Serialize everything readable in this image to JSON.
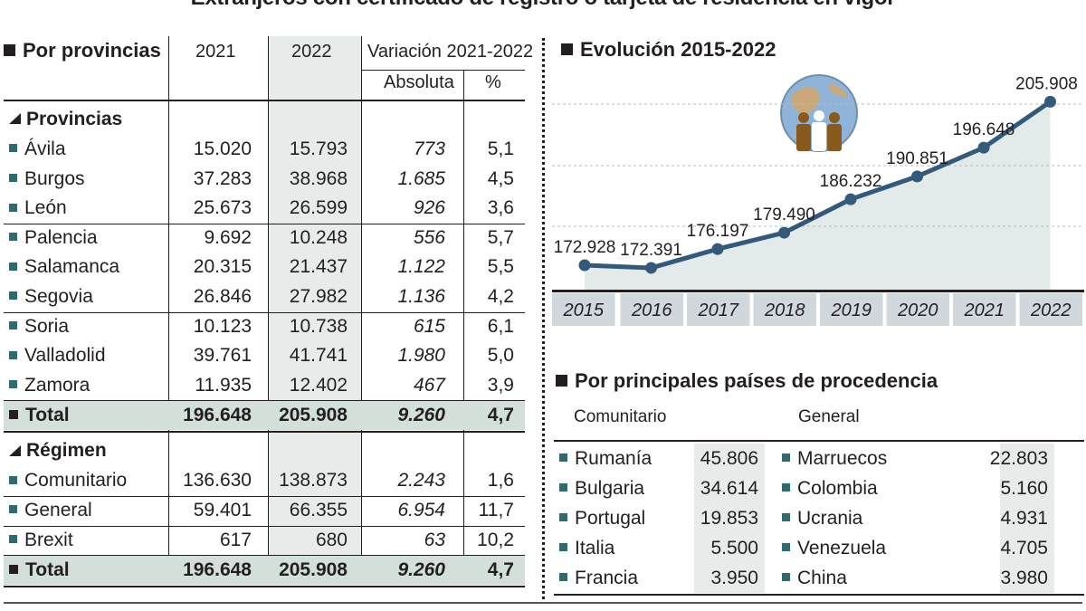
{
  "title": "Extranjeros con certificado de registro o tarjeta de residencia en vigor",
  "table": {
    "heading": "Por provincias",
    "col_2021": "2021",
    "col_2022": "2022",
    "col_variation": "Variación 2021-2022",
    "col_absolute": "Absoluta",
    "col_percent": "%",
    "sections": [
      {
        "label": "Provincias",
        "rows": [
          {
            "name": "Ávila",
            "y2021": "15.020",
            "y2022": "15.793",
            "abs": "773",
            "pct": "5,1"
          },
          {
            "name": "Burgos",
            "y2021": "37.283",
            "y2022": "38.968",
            "abs": "1.685",
            "pct": "4,5"
          },
          {
            "name": "León",
            "y2021": "25.673",
            "y2022": "26.599",
            "abs": "926",
            "pct": "3,6"
          },
          {
            "name": "Palencia",
            "y2021": "9.692",
            "y2022": "10.248",
            "abs": "556",
            "pct": "5,7"
          },
          {
            "name": "Salamanca",
            "y2021": "20.315",
            "y2022": "21.437",
            "abs": "1.122",
            "pct": "5,5"
          },
          {
            "name": "Segovia",
            "y2021": "26.846",
            "y2022": "27.982",
            "abs": "1.136",
            "pct": "4,2"
          },
          {
            "name": "Soria",
            "y2021": "10.123",
            "y2022": "10.738",
            "abs": "615",
            "pct": "6,1"
          },
          {
            "name": "Valladolid",
            "y2021": "39.761",
            "y2022": "41.741",
            "abs": "1.980",
            "pct": "5,0"
          },
          {
            "name": "Zamora",
            "y2021": "11.935",
            "y2022": "12.402",
            "abs": "467",
            "pct": "3,9"
          }
        ],
        "total": {
          "name": "Total",
          "y2021": "196.648",
          "y2022": "205.908",
          "abs": "9.260",
          "pct": "4,7"
        }
      },
      {
        "label": "Régimen",
        "rows": [
          {
            "name": "Comunitario",
            "y2021": "136.630",
            "y2022": "138.873",
            "abs": "2.243",
            "pct": "1,6"
          },
          {
            "name": "General",
            "y2021": "59.401",
            "y2022": "66.355",
            "abs": "6.954",
            "pct": "11,7"
          },
          {
            "name": "Brexit",
            "y2021": "617",
            "y2022": "680",
            "abs": "63",
            "pct": "10,2"
          }
        ],
        "total": {
          "name": "Total",
          "y2021": "196.648",
          "y2022": "205.908",
          "abs": "9.260",
          "pct": "4,7"
        }
      }
    ]
  },
  "chart_data": {
    "type": "line",
    "title": "Evolución 2015-2022",
    "categories": [
      "2015",
      "2016",
      "2017",
      "2018",
      "2019",
      "2020",
      "2021",
      "2022"
    ],
    "values": [
      172928,
      172391,
      176197,
      179490,
      186232,
      190851,
      196648,
      205908
    ],
    "labels": [
      "172.928",
      "172.391",
      "176.197",
      "179.490",
      "186.232",
      "190.851",
      "196.648",
      "205.908"
    ],
    "xlabel": "",
    "ylabel": "",
    "ylim": [
      168000,
      210000
    ],
    "grid": true,
    "area_fill": true,
    "colors": {
      "line": "#335a7a",
      "area": "#e3eaea",
      "axis_box": "#d0d8de"
    }
  },
  "countries": {
    "title": "Por principales países de procedencia",
    "group1_label": "Comunitario",
    "group2_label": "General",
    "group1": [
      {
        "name": "Rumanía",
        "value": "45.806"
      },
      {
        "name": "Bulgaria",
        "value": "34.614"
      },
      {
        "name": "Portugal",
        "value": "19.853"
      },
      {
        "name": "Italia",
        "value": "5.500"
      },
      {
        "name": "Francia",
        "value": "3.950"
      }
    ],
    "group2": [
      {
        "name": "Marruecos",
        "value": "22.803"
      },
      {
        "name": "Colombia",
        "value": "5.160"
      },
      {
        "name": "Ucrania",
        "value": "4.931"
      },
      {
        "name": "Venezuela",
        "value": "4.705"
      },
      {
        "name": "China",
        "value": "3.980"
      }
    ]
  },
  "colors": {
    "accent_square": "#2e6b6e",
    "total_row": "#d3dfd9",
    "shade_col": "#e7ecea"
  }
}
